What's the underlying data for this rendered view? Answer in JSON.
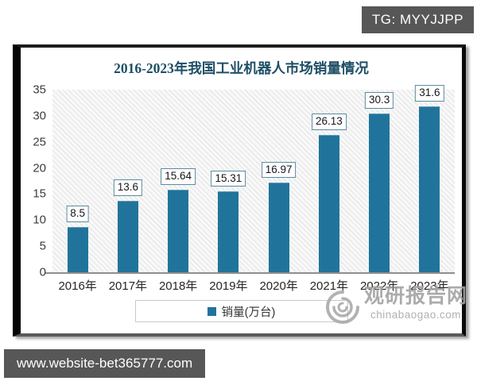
{
  "overlays": {
    "tg_badge": "TG: MYYJJPP",
    "url_bar": "www.website-bet365777.com"
  },
  "chart_data": {
    "type": "bar",
    "title": "2016-2023年我国工业机器人市场销量情况",
    "categories": [
      "2016年",
      "2017年",
      "2018年",
      "2019年",
      "2020年",
      "2021年",
      "2022年",
      "2023年"
    ],
    "values": [
      8.5,
      13.6,
      15.64,
      15.31,
      16.97,
      26.13,
      30.3,
      31.6
    ],
    "data_labels": [
      "8.5",
      "13.6",
      "15.64",
      "15.31",
      "16.97",
      "26.13",
      "30.3",
      "31.6"
    ],
    "legend": "销量(万台)",
    "legend_position": "bottom",
    "xlabel": "",
    "ylabel": "",
    "ylim": [
      0,
      35
    ],
    "yticks": [
      0,
      5,
      10,
      15,
      20,
      25,
      30,
      35
    ],
    "grid": false,
    "bar_color": "#20749b",
    "title_color": "#1e4f66",
    "plot_background": "diagonal-hatch"
  },
  "watermark": {
    "name": "观研报告网",
    "domain": "chinabaogao.com"
  }
}
